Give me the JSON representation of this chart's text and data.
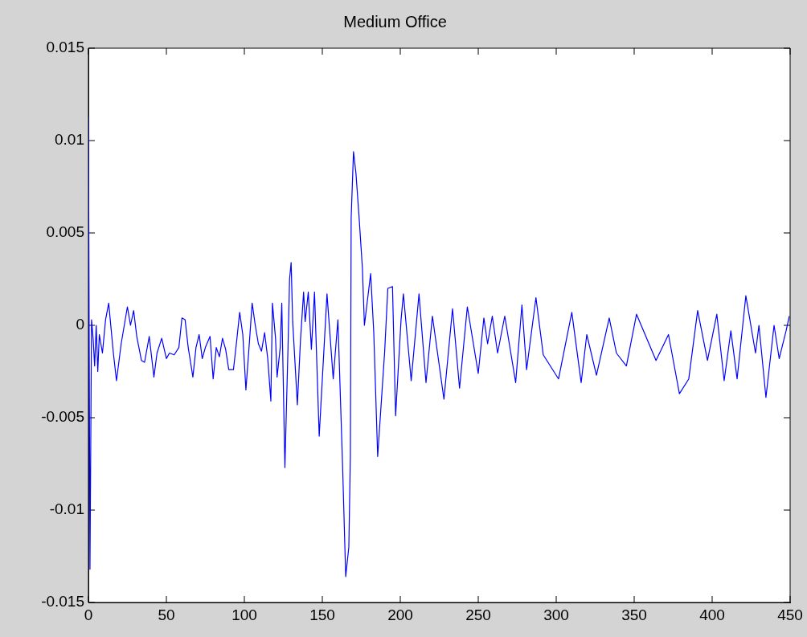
{
  "chart_data": {
    "type": "line",
    "title": "Medium Office",
    "x": [
      0,
      1,
      2,
      3,
      4,
      5,
      6,
      7,
      9,
      11,
      13,
      16,
      18,
      21,
      25,
      27,
      29,
      31,
      34,
      36,
      39,
      42,
      44,
      47,
      50,
      52,
      55,
      58,
      60,
      62,
      64,
      67,
      69,
      71,
      73,
      75,
      78,
      80,
      82,
      84,
      86,
      88,
      90,
      93,
      95,
      97,
      99,
      101,
      103,
      105,
      107,
      109,
      111,
      113,
      115,
      117,
      118,
      120,
      121,
      123,
      124,
      126,
      128,
      129,
      130,
      131,
      134,
      136,
      138,
      139,
      141,
      143,
      145,
      148,
      153,
      157,
      160,
      163,
      165,
      167,
      168,
      168.5,
      170,
      171.6,
      173.7,
      175.7,
      177,
      181,
      183,
      185.5,
      190,
      192,
      195,
      197,
      200.5,
      202,
      207,
      212,
      216.5,
      220.6,
      228,
      233.5,
      238,
      243,
      250,
      253.6,
      256,
      259,
      262.4,
      267,
      274,
      278,
      281,
      287,
      291.7,
      301.5,
      310,
      316,
      319.6,
      325.8,
      334,
      338.6,
      345,
      351.5,
      357,
      364,
      372,
      379,
      385,
      390.7,
      397,
      403,
      407.7,
      412,
      416,
      421.6,
      427.8,
      430,
      434.5,
      439.7,
      443,
      447.4,
      449.5
    ],
    "series": [
      {
        "color": "#0000ff",
        "values": [
          0.0113,
          -0.0132,
          0.0003,
          -0.0007,
          -0.0022,
          0.0,
          -0.0025,
          -0.0005,
          -0.0015,
          0.0003,
          0.0012,
          -0.0015,
          -0.003,
          -0.001,
          0.001,
          0.0,
          0.0008,
          -0.0006,
          -0.0019,
          -0.002,
          -0.0006,
          -0.0028,
          -0.0015,
          -0.0007,
          -0.0018,
          -0.0015,
          -0.0016,
          -0.0012,
          0.0004,
          0.0003,
          -0.0012,
          -0.0028,
          -0.0012,
          -0.0005,
          -0.0018,
          -0.0012,
          -0.0006,
          -0.0029,
          -0.0012,
          -0.0017,
          -0.0007,
          -0.0013,
          -0.0024,
          -0.0024,
          -0.0009,
          0.0007,
          -0.0005,
          -0.0035,
          -0.0012,
          0.0012,
          0.0,
          -0.001,
          -0.0014,
          -0.0004,
          -0.0018,
          -0.0041,
          0.0012,
          -0.0007,
          -0.0028,
          -0.0012,
          0.0012,
          -0.0077,
          -0.0012,
          0.0025,
          0.0034,
          0.0002,
          -0.0043,
          -0.0008,
          0.0018,
          0.0002,
          0.0018,
          -0.0013,
          0.0018,
          -0.006,
          0.0017,
          -0.0029,
          0.0003,
          -0.0076,
          -0.0136,
          -0.012,
          -0.007,
          0.0058,
          0.0094,
          0.0082,
          0.0057,
          0.0031,
          0.0,
          0.0028,
          -0.0004,
          -0.0071,
          -0.0014,
          0.002,
          0.0021,
          -0.0049,
          0.0003,
          0.0017,
          -0.003,
          0.0017,
          -0.0031,
          0.0005,
          -0.004,
          0.0009,
          -0.0034,
          0.001,
          -0.0026,
          0.0004,
          -0.001,
          0.0005,
          -0.0015,
          0.0005,
          -0.0031,
          0.0011,
          -0.0024,
          0.0015,
          -0.0016,
          -0.0029,
          0.0007,
          -0.0031,
          -0.0005,
          -0.0027,
          0.0004,
          -0.0015,
          -0.0022,
          0.0006,
          -0.0005,
          -0.0019,
          -0.0005,
          -0.0037,
          -0.0029,
          0.0008,
          -0.0019,
          0.0006,
          -0.003,
          -0.0003,
          -0.0029,
          0.0016,
          -0.0015,
          0.0,
          -0.0039,
          0.0,
          -0.0018,
          -0.0003,
          0.0005
        ]
      }
    ],
    "xlim": [
      0,
      450
    ],
    "xticks": [
      0,
      50,
      100,
      150,
      200,
      250,
      300,
      350,
      400,
      450
    ],
    "ylim": [
      -0.015,
      0.015
    ],
    "yticks": [
      -0.015,
      -0.01,
      -0.005,
      0,
      0.005,
      0.01,
      0.015
    ],
    "grid": false,
    "legend": false,
    "marker": "none",
    "line_style": "solid"
  }
}
